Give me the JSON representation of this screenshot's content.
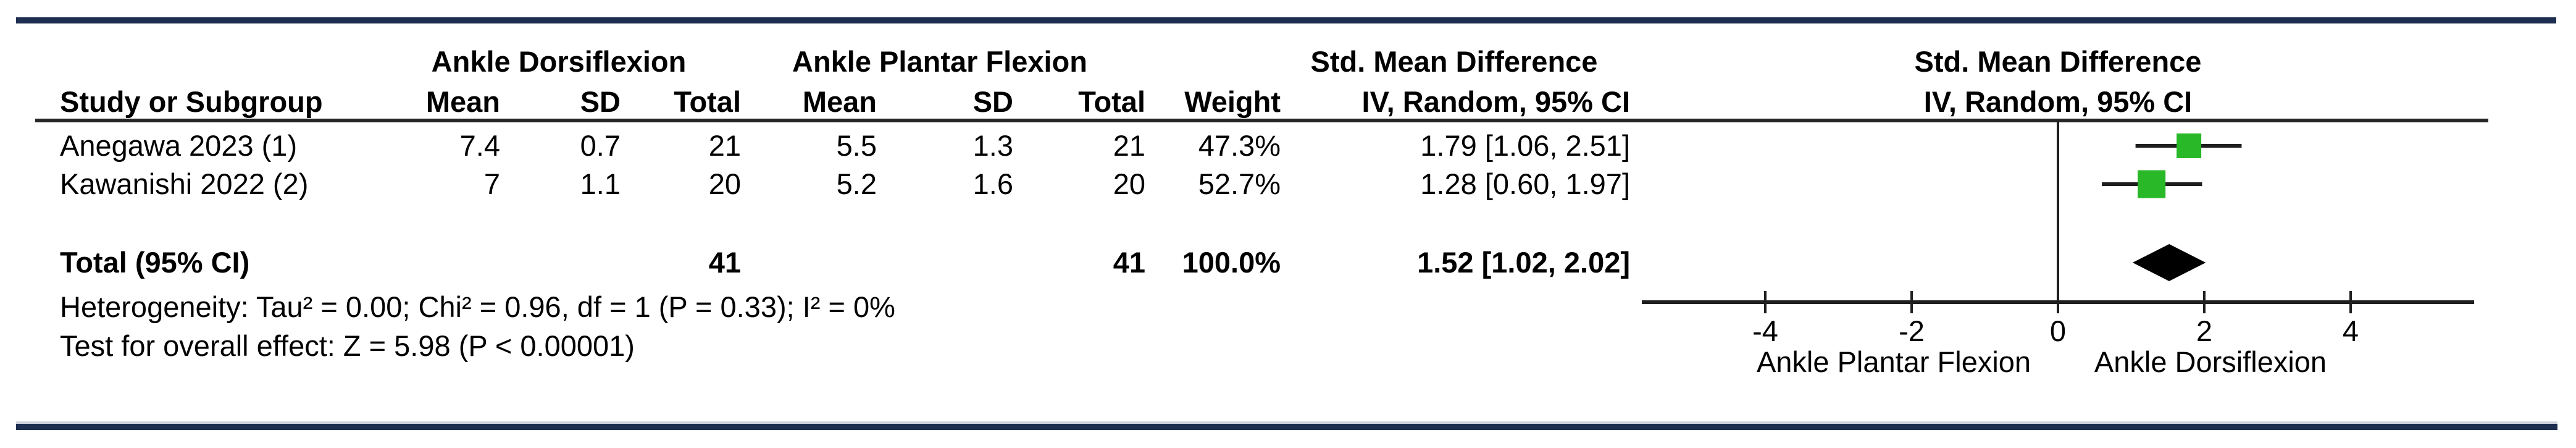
{
  "colors": {
    "rule_navy": "#1d2e50",
    "rule_shadow": "#ccd1da",
    "line": "#1f1f1f",
    "marker_green": "#28b828",
    "diamond_black": "#000000"
  },
  "table": {
    "group_headers": {
      "experimental": "Ankle Dorsiflexion",
      "control": "Ankle Plantar Flexion",
      "effect": "Std. Mean Difference"
    },
    "columns": {
      "study": "Study or Subgroup",
      "mean1": "Mean",
      "sd1": "SD",
      "total1": "Total",
      "mean2": "Mean",
      "sd2": "SD",
      "total2": "Total",
      "weight": "Weight",
      "effect_ci": "IV, Random, 95% CI"
    },
    "rows": [
      {
        "study": "Anegawa 2023 (1)",
        "mean1": "7.4",
        "sd1": "0.7",
        "total1": "21",
        "mean2": "5.5",
        "sd2": "1.3",
        "total2": "21",
        "weight": "47.3%",
        "ci": "1.79 [1.06, 2.51]"
      },
      {
        "study": "Kawanishi 2022 (2)",
        "mean1": "7",
        "sd1": "1.1",
        "total1": "20",
        "mean2": "5.2",
        "sd2": "1.6",
        "total2": "20",
        "weight": "52.7%",
        "ci": "1.28 [0.60, 1.97]"
      }
    ],
    "total_row": {
      "label": "Total (95% CI)",
      "total1": "41",
      "total2": "41",
      "weight": "100.0%",
      "ci": "1.52 [1.02, 2.02]"
    },
    "footnotes": {
      "heterogeneity": "Heterogeneity: Tau² = 0.00; Chi² = 0.96, df = 1 (P = 0.33); I² = 0%",
      "overall_effect": "Test for overall effect: Z = 5.98 (P < 0.00001)"
    }
  },
  "plot": {
    "header_line1": "Std. Mean Difference",
    "header_line2": "IV, Random, 95% CI"
  },
  "chart_data": {
    "type": "forest",
    "effect_measure": "Std. Mean Difference, IV, Random, 95% CI",
    "studies": [
      {
        "name": "Anegawa 2023 (1)",
        "exp_mean": 7.4,
        "exp_sd": 0.7,
        "exp_total": 21,
        "ctrl_mean": 5.5,
        "ctrl_sd": 1.3,
        "ctrl_total": 21,
        "weight_pct": 47.3,
        "smd": 1.79,
        "ci": [
          1.06,
          2.51
        ]
      },
      {
        "name": "Kawanishi 2022 (2)",
        "exp_mean": 7,
        "exp_sd": 1.1,
        "exp_total": 20,
        "ctrl_mean": 5.2,
        "ctrl_sd": 1.6,
        "ctrl_total": 20,
        "weight_pct": 52.7,
        "smd": 1.28,
        "ci": [
          0.6,
          1.97
        ]
      }
    ],
    "total": {
      "exp_total": 41,
      "ctrl_total": 41,
      "weight_pct": 100.0,
      "smd": 1.52,
      "ci": [
        1.02,
        2.02
      ]
    },
    "x_ticks": [
      -4,
      -2,
      0,
      2,
      4
    ],
    "xlim": [
      -5.7,
      5.7
    ],
    "axis_label_left": "Ankle Plantar Flexion",
    "axis_label_right": "Ankle Dorsiflexion",
    "heterogeneity": "Tau² = 0.00; Chi² = 0.96, df = 1 (P = 0.33); I² = 0%",
    "overall_effect": "Z = 5.98 (P < 0.00001)",
    "marker_color": "#28b828",
    "diamond_color": "#000000",
    "legend_position": "none",
    "grid": false
  }
}
